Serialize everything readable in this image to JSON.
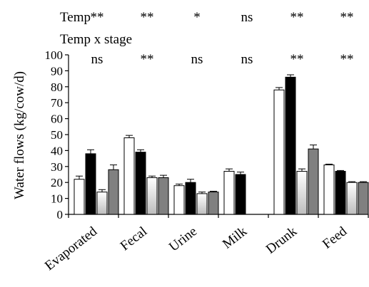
{
  "chart_data": {
    "type": "bar",
    "title": "",
    "xlabel": "",
    "ylabel": "Water flows (kg/cow/d)",
    "ylim": [
      0,
      100
    ],
    "yticks": [
      0,
      10,
      20,
      30,
      40,
      50,
      60,
      70,
      80,
      90,
      100
    ],
    "categories": [
      "Evaporated",
      "Fecal",
      "Urine",
      "Milk",
      "Drunk",
      "Feed"
    ],
    "series": [
      {
        "color": "#ffffff",
        "fill_style": "solid",
        "values": [
          22,
          48,
          18,
          27,
          78,
          31
        ],
        "errors": [
          2,
          1.5,
          1,
          1.5,
          1.5,
          0.5
        ]
      },
      {
        "color": "#000000",
        "fill_style": "solid",
        "values": [
          38,
          39,
          20,
          25,
          86,
          27
        ],
        "errors": [
          2.5,
          1.5,
          2,
          1.5,
          1.5,
          0.5
        ]
      },
      {
        "color": "#d9d9d9",
        "fill_style": "gradient",
        "values": [
          14,
          23,
          13,
          null,
          27,
          20
        ],
        "errors": [
          1.5,
          1,
          1,
          null,
          1.5,
          0.5
        ]
      },
      {
        "color": "#808080",
        "fill_style": "solid",
        "values": [
          28,
          23,
          14,
          null,
          41,
          20
        ],
        "errors": [
          3,
          1.5,
          0.5,
          null,
          2.5,
          0.5
        ]
      }
    ],
    "significance": [
      {
        "label": "Temp",
        "marks": [
          "**",
          "**",
          "*",
          "ns",
          "**",
          "**"
        ]
      },
      {
        "label": "Temp x stage",
        "marks": [
          "ns",
          "**",
          "ns",
          "ns",
          "**",
          "**"
        ]
      }
    ],
    "grid": false,
    "legend": "none"
  }
}
